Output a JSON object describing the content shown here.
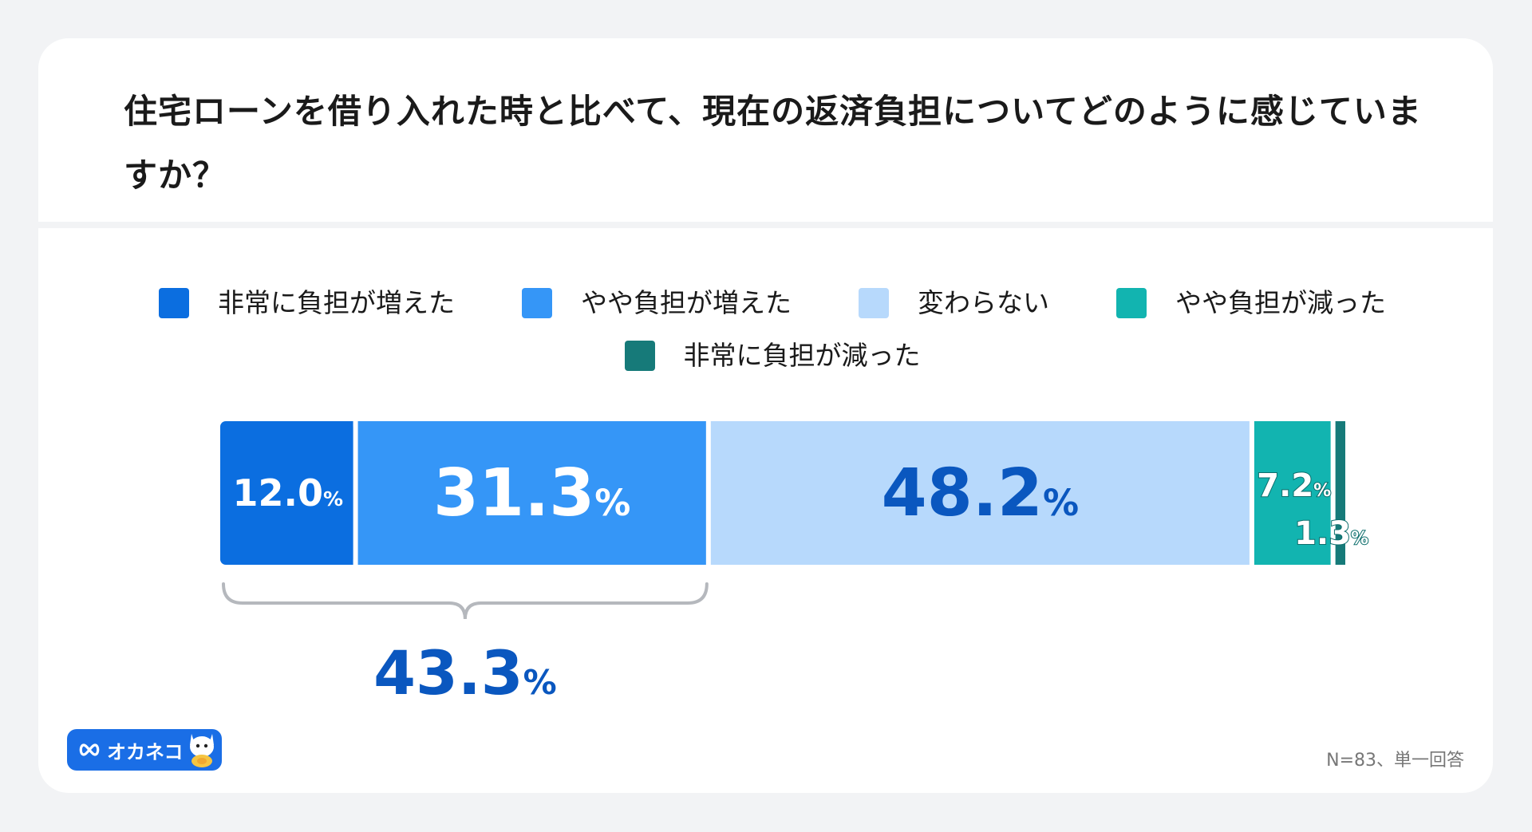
{
  "question": "住宅ローンを借り入れた時と比べて、現在の返済負担についてどのように感じていますか？",
  "chart_data": {
    "type": "bar",
    "orientation": "horizontal-stacked-100",
    "unit": "%",
    "series": [
      {
        "name": "非常に負担が増えた",
        "value": 12.0,
        "label": "12.0",
        "color": "#0b6ee0",
        "text_color": "#ffffff"
      },
      {
        "name": "やや負担が増えた",
        "value": 31.3,
        "label": "31.3",
        "color": "#3596f7",
        "text_color": "#ffffff"
      },
      {
        "name": "変わらない",
        "value": 48.2,
        "label": "48.2",
        "color": "#b7d9fc",
        "text_color": "#0a57bf"
      },
      {
        "name": "やや負担が減った",
        "value": 7.2,
        "label": "7.2",
        "color": "#12b4b0",
        "text_color": "#ffffff"
      },
      {
        "name": "非常に負担が減った",
        "value": 1.3,
        "label": "1.3",
        "color": "#167a79",
        "text_color": "#ffffff"
      }
    ],
    "bracket": {
      "covers": [
        0,
        1
      ],
      "value": 43.3,
      "label": "43.3",
      "color": "#0a57bf"
    },
    "legend_position": "top"
  },
  "legend_title": "",
  "footnote": "N=83、単一回答",
  "logo": {
    "text": "オカネコ",
    "icon": "infinity-icon",
    "mascot": "cat-mascot-icon",
    "color": "#1a6ee6"
  }
}
